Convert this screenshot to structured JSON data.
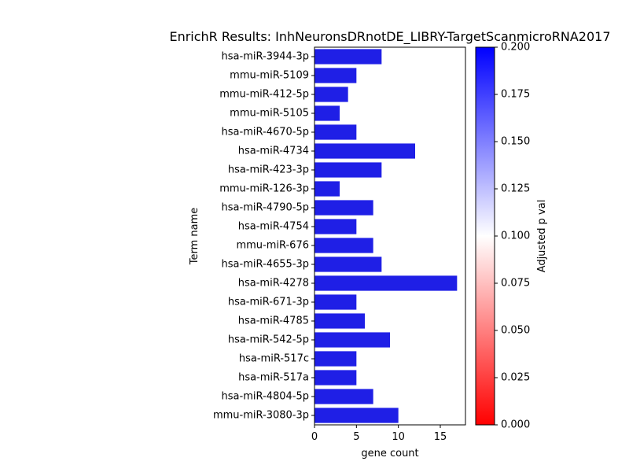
{
  "chart_data": {
    "type": "bar",
    "orientation": "horizontal",
    "title": "EnrichR Results: InhNeuronsDRnotDE_LIBRY-TargetScanmicroRNA2017",
    "xlabel": "gene count",
    "ylabel": "Term name",
    "xlim": [
      0,
      18
    ],
    "x_ticks": [
      "0",
      "5",
      "10",
      "15"
    ],
    "x_tick_values": [
      0,
      5,
      10,
      15
    ],
    "categories": [
      "hsa-miR-3944-3p",
      "mmu-miR-5109",
      "mmu-miR-412-5p",
      "mmu-miR-5105",
      "hsa-miR-4670-5p",
      "hsa-miR-4734",
      "hsa-miR-423-3p",
      "mmu-miR-126-3p",
      "hsa-miR-4790-5p",
      "hsa-miR-4754",
      "mmu-miR-676",
      "hsa-miR-4655-3p",
      "hsa-miR-4278",
      "hsa-miR-671-3p",
      "hsa-miR-4785",
      "hsa-miR-542-5p",
      "hsa-miR-517c",
      "hsa-miR-517a",
      "hsa-miR-4804-5p",
      "mmu-miR-3080-3p"
    ],
    "values": [
      8,
      5,
      4,
      3,
      5,
      12,
      8,
      3,
      7,
      5,
      7,
      8,
      17,
      5,
      6,
      9,
      5,
      5,
      7,
      10
    ],
    "bar_color": "#1f1fe6",
    "grid": false,
    "legend": "none",
    "colorbar": {
      "label": "Adjusted p val",
      "range": [
        0.0,
        0.2
      ],
      "ticks": [
        "0.000",
        "0.025",
        "0.050",
        "0.075",
        "0.100",
        "0.125",
        "0.150",
        "0.175",
        "0.200"
      ],
      "tick_values": [
        0.0,
        0.025,
        0.05,
        0.075,
        0.1,
        0.125,
        0.15,
        0.175,
        0.2
      ],
      "colormap": [
        "#ff0000",
        "#ffffff",
        "#0000ff"
      ]
    }
  }
}
